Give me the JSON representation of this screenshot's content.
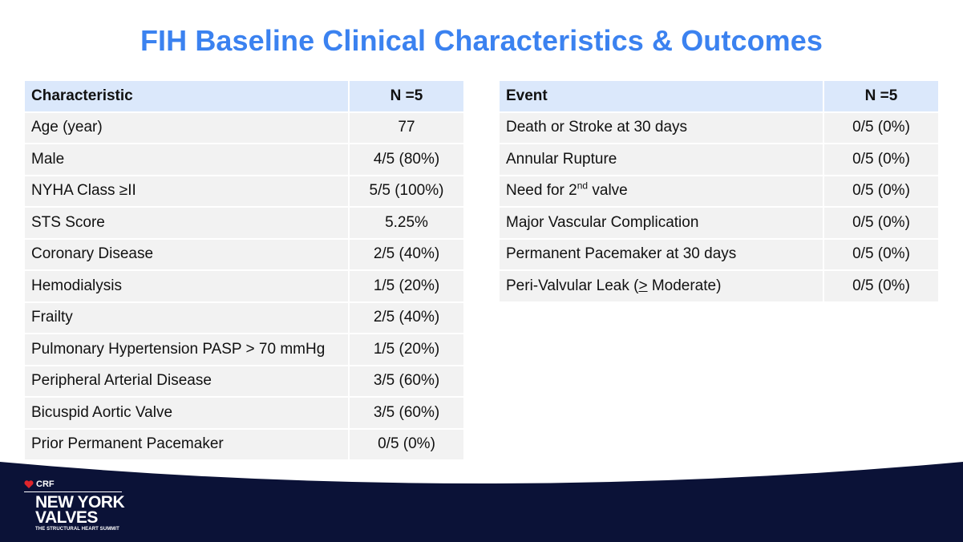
{
  "title": "FIH Baseline Clinical Characteristics & Outcomes",
  "baseline_table": {
    "headers": [
      "Characteristic",
      "N =5"
    ],
    "rows": [
      [
        "Age (year)",
        "77"
      ],
      [
        "Male",
        "4/5 (80%)"
      ],
      [
        "NYHA Class ≥II",
        "5/5 (100%)"
      ],
      [
        "STS Score",
        "5.25%"
      ],
      [
        "Coronary Disease",
        "2/5 (40%)"
      ],
      [
        "Hemodialysis",
        "1/5 (20%)"
      ],
      [
        "Frailty",
        "2/5 (40%)"
      ],
      [
        "Pulmonary Hypertension PASP > 70 mmHg",
        "1/5 (20%)"
      ],
      [
        "Peripheral Arterial Disease",
        "3/5 (60%)"
      ],
      [
        "Bicuspid Aortic Valve",
        "3/5 (60%)"
      ],
      [
        "Prior Permanent Pacemaker",
        "0/5 (0%)"
      ]
    ]
  },
  "outcomes_table": {
    "headers": [
      "Event",
      "N =5"
    ],
    "rows": [
      {
        "event": "Death or Stroke at 30 days",
        "value": "0/5 (0%)"
      },
      {
        "event_pre": "Need for 2",
        "event_sup": "nd",
        "event_post": " valve",
        "value": "0/5 (0%)"
      },
      {
        "event": "Annular Rupture",
        "value": "0/5 (0%)"
      },
      {
        "event": "Major Vascular Complication",
        "value": "0/5 (0%)"
      },
      {
        "event": "Permanent Pacemaker at 30 days",
        "value": "0/5 (0%)"
      },
      {
        "event_pre": "Peri-Valvular Leak  (",
        "event_ul": ">",
        "event_post": " Moderate)",
        "value": "0/5 (0%)"
      }
    ]
  },
  "footer": {
    "logo_top": "CRF",
    "logo_line1": "NEW YORK",
    "logo_line2": "VALVES",
    "logo_sub": "THE STRUCTURAL HEART SUMMIT"
  },
  "colors": {
    "title": "#3b82f0",
    "header_fill": "#dbe8fb",
    "row_fill": "#f2f2f2",
    "footer_navy": "#0b1237",
    "heart": "#e0252b"
  }
}
